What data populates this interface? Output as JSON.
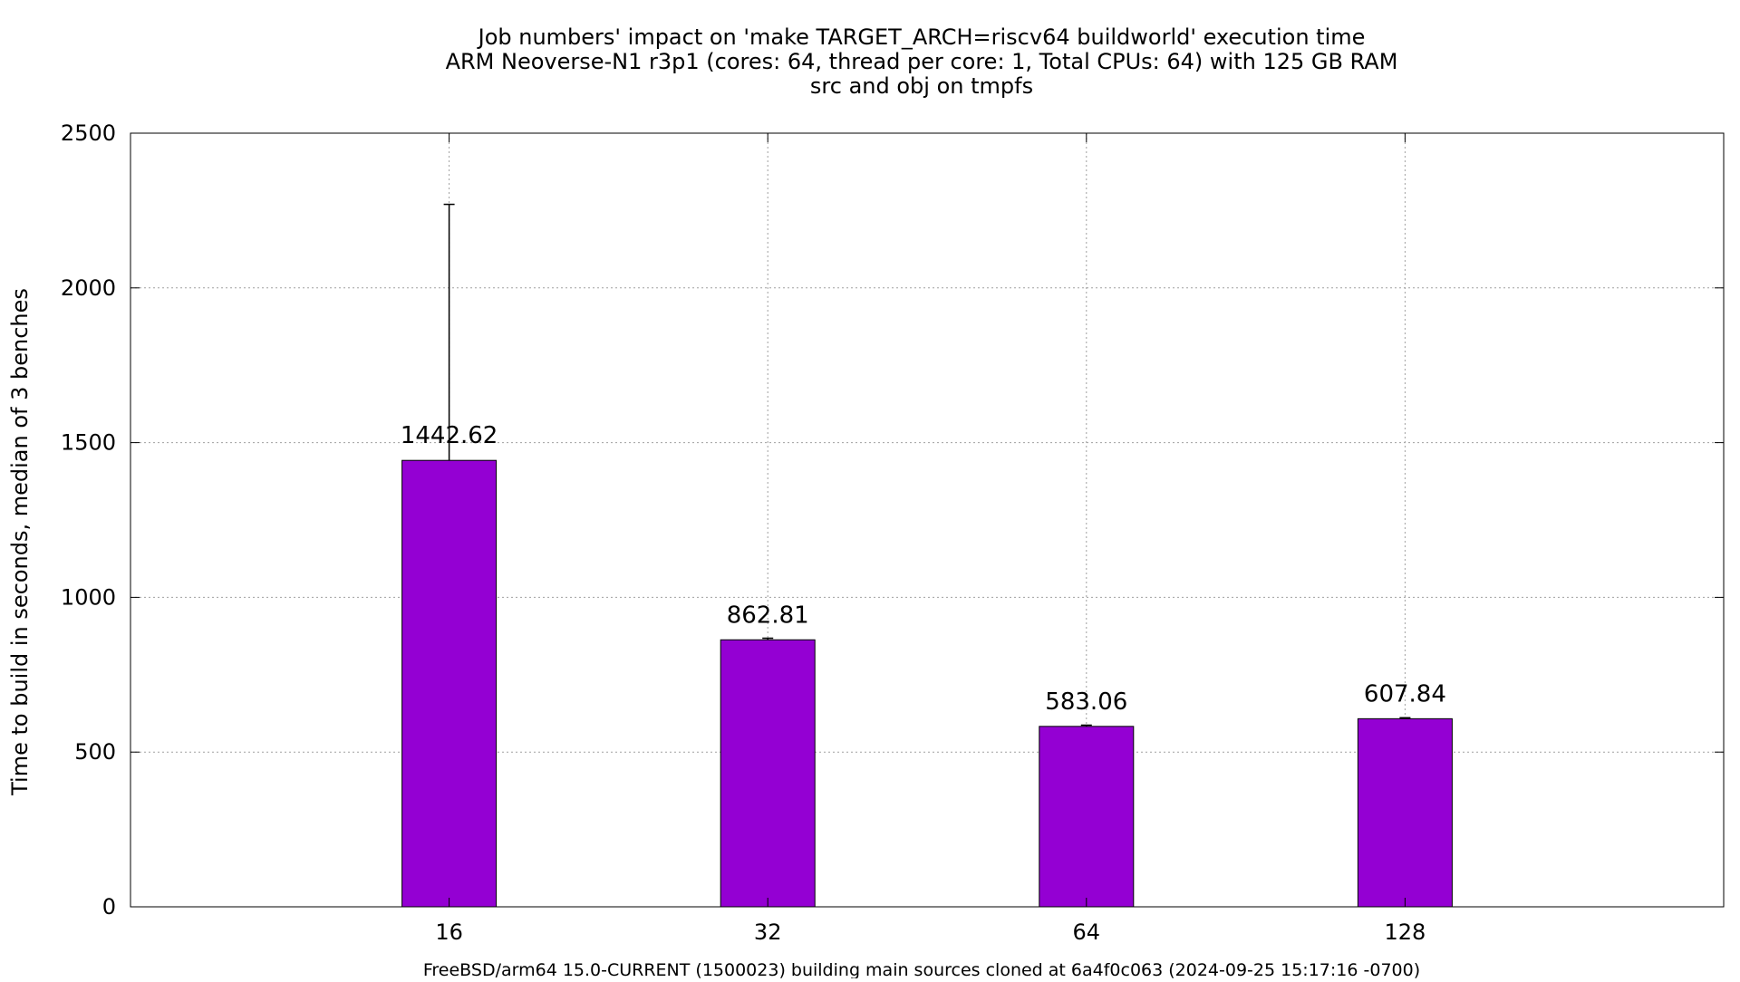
{
  "chart_data": {
    "type": "bar",
    "title_lines": [
      "Job numbers' impact on 'make TARGET_ARCH=riscv64 buildworld' execution time",
      "ARM Neoverse-N1 r3p1 (cores: 64, thread per core: 1, Total CPUs: 64) with 125 GB RAM",
      "src and obj on tmpfs"
    ],
    "xlabel": "FreeBSD/arm64 15.0-CURRENT (1500023) building main sources cloned at 6a4f0c063 (2024-09-25 15:17:16 -0700)",
    "ylabel": "Time to build in seconds, median of 3 benches",
    "categories": [
      "16",
      "32",
      "64",
      "128"
    ],
    "values": [
      1442.62,
      862.81,
      583.06,
      607.84
    ],
    "data_labels": [
      "1442.62",
      "862.81",
      "583.06",
      "607.84"
    ],
    "error_high": [
      2270,
      868,
      587,
      611
    ],
    "ylim": [
      0,
      2500
    ],
    "yticks": [
      0,
      500,
      1000,
      1500,
      2000,
      2500
    ],
    "grid": true,
    "legend": "none",
    "colors": {
      "bar_fill": "#9400d3",
      "bar_stroke": "#000000",
      "grid": "#a0a0a0",
      "axis": "#000000",
      "error_bar": "#000000"
    }
  }
}
